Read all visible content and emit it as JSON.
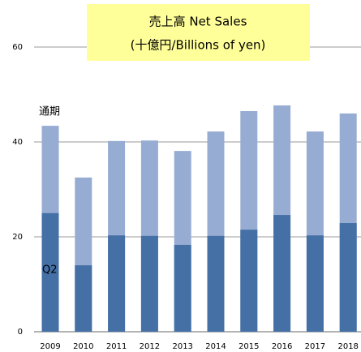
{
  "chart_data": {
    "type": "bar",
    "title": "売上高 Net Sales",
    "subtitle": "(十億円/Billions of yen)",
    "categories": [
      "2009",
      "2010",
      "2011",
      "2012",
      "2013",
      "2014",
      "2015",
      "2016",
      "2017",
      "2018"
    ],
    "series": [
      {
        "name": "通期",
        "color": "#97acd3",
        "values": [
          43.4,
          32.5,
          40.2,
          40.3,
          38.1,
          42.2,
          46.5,
          47.7,
          42.2,
          46.0
        ]
      },
      {
        "name": "Q2",
        "color": "#4470a6",
        "values": [
          25.0,
          14.0,
          20.3,
          20.2,
          18.3,
          20.2,
          21.5,
          24.6,
          20.3,
          22.9
        ]
      }
    ],
    "ylim": [
      0,
      60
    ],
    "yticks": [
      0,
      20,
      40,
      60
    ],
    "grid": true
  }
}
